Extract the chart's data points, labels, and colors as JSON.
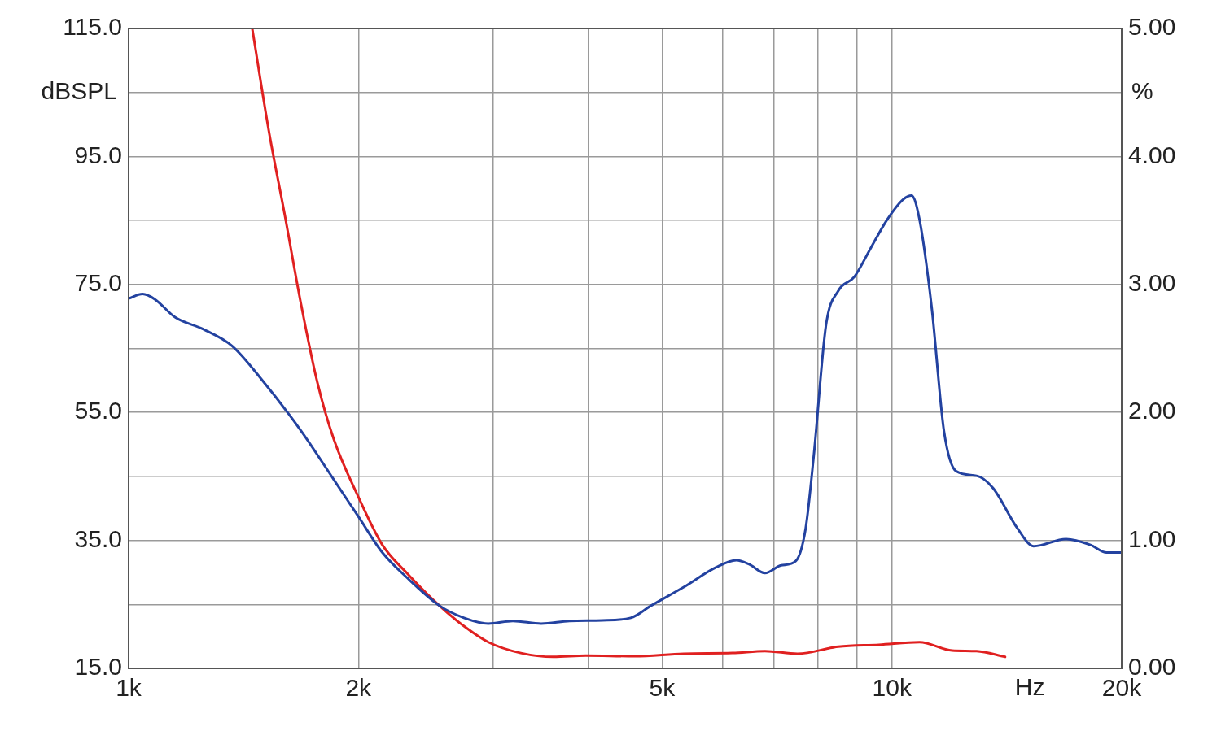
{
  "chart_data": {
    "type": "line",
    "xlabel": "Hz",
    "ylabel": "dBSPL",
    "y2label": "%",
    "log": "x",
    "grid": true,
    "legend": false,
    "marker": "none",
    "line_style": "solid",
    "xlim": [
      1000,
      20000
    ],
    "xticks": [
      {
        "value": 1000,
        "label": "1k"
      },
      {
        "value": 2000,
        "label": "2k"
      },
      {
        "value": 3000,
        "label": null
      },
      {
        "value": 4000,
        "label": null
      },
      {
        "value": 5000,
        "label": "5k"
      },
      {
        "value": 6000,
        "label": null
      },
      {
        "value": 7000,
        "label": null
      },
      {
        "value": 8000,
        "label": null
      },
      {
        "value": 9000,
        "label": null
      },
      {
        "value": 10000,
        "label": "10k"
      },
      {
        "value": 20000,
        "label": "20k"
      }
    ],
    "ylim": [
      15,
      115
    ],
    "yticks": [
      {
        "value": 115,
        "label": "115.0"
      },
      {
        "value": 105,
        "label": null
      },
      {
        "value": 95,
        "label": "95.0"
      },
      {
        "value": 85,
        "label": null
      },
      {
        "value": 75,
        "label": "75.0"
      },
      {
        "value": 65,
        "label": null
      },
      {
        "value": 55,
        "label": "55.0"
      },
      {
        "value": 45,
        "label": null
      },
      {
        "value": 35,
        "label": "35.0"
      },
      {
        "value": 25,
        "label": null
      },
      {
        "value": 15,
        "label": "15.0"
      }
    ],
    "y2lim": [
      0,
      5
    ],
    "y2ticks": [
      {
        "value": 5,
        "label": "5.00"
      },
      {
        "value": 4.5,
        "label": null
      },
      {
        "value": 4,
        "label": "4.00"
      },
      {
        "value": 3.5,
        "label": null
      },
      {
        "value": 3,
        "label": "3.00"
      },
      {
        "value": 2.5,
        "label": null
      },
      {
        "value": 2,
        "label": "2.00"
      },
      {
        "value": 1.5,
        "label": null
      },
      {
        "value": 1,
        "label": "1.00"
      },
      {
        "value": 0.5,
        "label": null
      },
      {
        "value": 0,
        "label": "0.00"
      }
    ],
    "series": [
      {
        "color": "#2342a0",
        "x": [
          1000,
          1043,
          1082,
          1150,
          1253,
          1366,
          1488,
          1683,
          1857,
          1998,
          2150,
          2315,
          2554,
          2750,
          2960,
          3187,
          3472,
          3782,
          4174,
          4548,
          4835,
          5336,
          5885,
          6256,
          6492,
          6819,
          7161,
          7484,
          7709,
          7901,
          8196,
          8506,
          8930,
          9383,
          9854,
          10350,
          10610,
          10870,
          11280,
          11700,
          12140,
          12910,
          13560,
          14600,
          15330,
          16910,
          18200,
          19110,
          20000
        ],
        "values": [
          72.8,
          73.5,
          72.7,
          69.9,
          68.0,
          65.4,
          60.4,
          52.1,
          44.5,
          38.8,
          33.1,
          29.2,
          24.8,
          22.9,
          22.0,
          22.4,
          22.0,
          22.4,
          22.5,
          22.9,
          24.8,
          27.7,
          30.8,
          31.9,
          31.3,
          29.9,
          31.1,
          31.8,
          36.9,
          48.3,
          68.6,
          74.0,
          76.2,
          80.7,
          85.1,
          88.3,
          88.9,
          85.1,
          71.2,
          52.1,
          45.8,
          45.1,
          43.2,
          36.9,
          34.1,
          35.2,
          34.3,
          33.1,
          33.1
        ]
      },
      {
        "color": "#e02020",
        "x": [
          1452,
          1526,
          1602,
          1683,
          1767,
          1857,
          1998,
          2150,
          2315,
          2554,
          2750,
          2960,
          3265,
          3602,
          3973,
          4603,
          5336,
          6180,
          6819,
          7521,
          8506,
          9616,
          10870,
          11990,
          12910,
          14070
        ],
        "values": [
          115,
          99.1,
          85.8,
          71.8,
          59.7,
          50.8,
          41.9,
          34.3,
          29.9,
          24.8,
          21.6,
          19.1,
          17.4,
          16.8,
          17.0,
          16.9,
          17.3,
          17.4,
          17.7,
          17.3,
          18.4,
          18.7,
          19.1,
          17.8,
          17.7,
          16.8
        ]
      }
    ]
  }
}
